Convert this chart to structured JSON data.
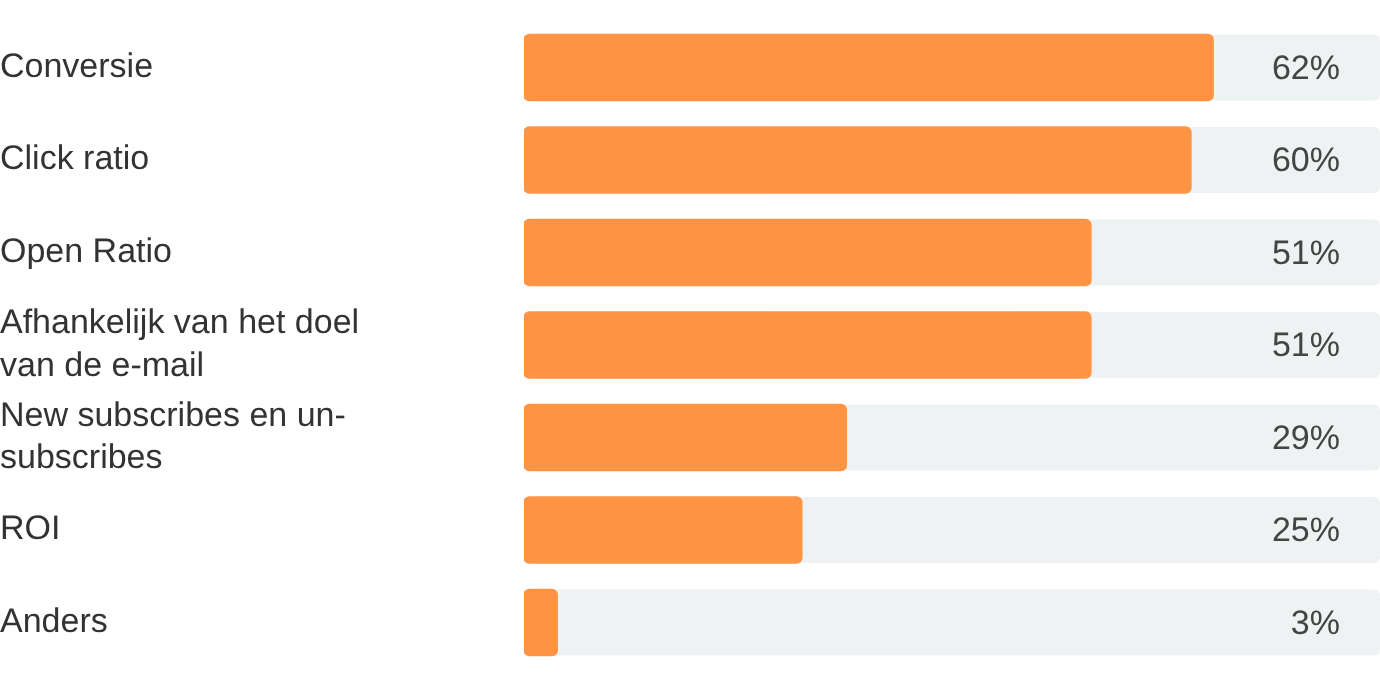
{
  "chart_data": {
    "type": "bar",
    "orientation": "horizontal",
    "categories": [
      "Conversie",
      "Click ratio",
      "Open Ratio",
      "Afhankelijk van het doel van de e-mail",
      "New subscribes en un-subscribes",
      "ROI",
      "Anders"
    ],
    "values": [
      62,
      60,
      51,
      51,
      29,
      25,
      3
    ],
    "value_labels": [
      "62%",
      "60%",
      "51%",
      "51%",
      "29%",
      "25%",
      "3%"
    ],
    "color": "#ff9445",
    "xlim": [
      0,
      77
    ],
    "tick_labels": "y",
    "legend": false
  }
}
